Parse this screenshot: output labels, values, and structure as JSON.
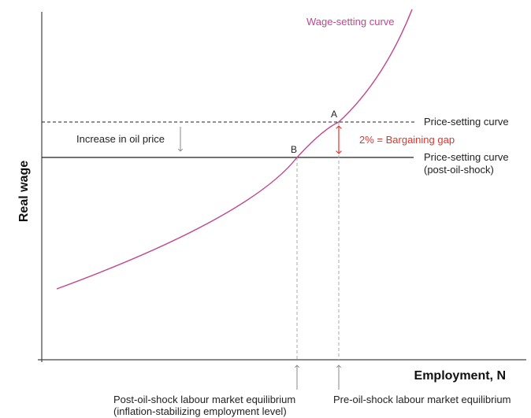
{
  "colors": {
    "axis": "#444444",
    "wage_curve": "#c0468f",
    "price_line": "#222222",
    "guide": "#aaaaaa",
    "gap": "#e2332b",
    "arrow_grey": "#888888"
  },
  "axes": {
    "y_title": "Real wage",
    "x_title": "Employment, N"
  },
  "curves": {
    "wage_setting": "Wage-setting curve",
    "price_setting": "Price-setting curve",
    "price_setting_post_line1": "Price-setting curve",
    "price_setting_post_line2": "(post-oil-shock)"
  },
  "annotations": {
    "oil_price": "Increase in oil price",
    "gap": "2% = Bargaining gap",
    "point_a": "A",
    "point_b": "B",
    "post_eq_line1": "Post-oil-shock labour market equilibrium",
    "post_eq_line2": "(inflation-stabilizing employment level)",
    "pre_eq": "Pre-oil-shock labour market equilibrium"
  }
}
